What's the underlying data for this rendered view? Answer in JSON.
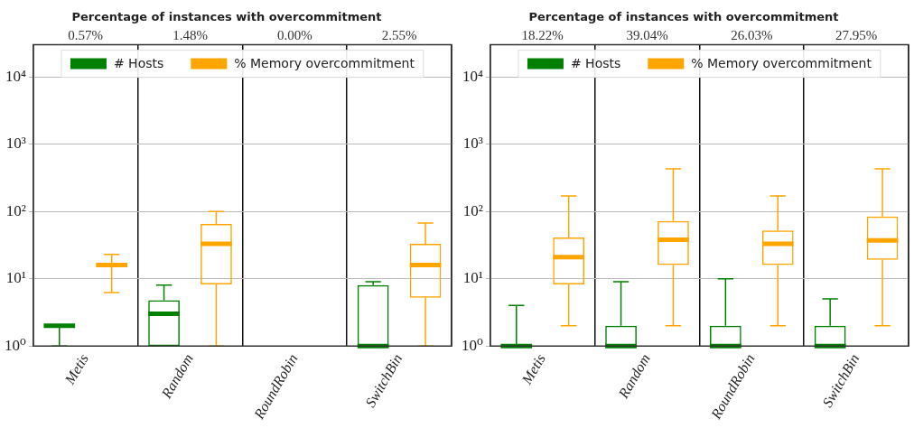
{
  "chart_data": [
    {
      "type": "box",
      "title": "Percentage of instances with overcommitment",
      "categories": [
        "Metis",
        "Random",
        "RoundRobin",
        "SwitchBin"
      ],
      "log": "y",
      "ylim": [
        1,
        30000
      ],
      "yticks": [
        {
          "value": 1,
          "label": "10⁰"
        },
        {
          "value": 10,
          "label": "10¹"
        },
        {
          "value": 100,
          "label": "10²"
        },
        {
          "value": 1000,
          "label": "10³"
        },
        {
          "value": 10000,
          "label": "10⁴"
        }
      ],
      "grid": true,
      "legend": "top",
      "annotations": [
        "0.57%",
        "1.48%",
        "0.00%",
        "2.55%"
      ],
      "series": [
        {
          "name": "# Hosts",
          "color": "#008000",
          "boxes": [
            {
              "low": 1,
              "q1": 2,
              "median": 2,
              "q3": 2,
              "high": 2
            },
            {
              "low": 1,
              "q1": 1,
              "median": 3,
              "q3": 4.8,
              "high": 8
            },
            null,
            {
              "low": 1,
              "q1": 1,
              "median": 1,
              "q3": 8,
              "high": 9
            }
          ]
        },
        {
          "name": "% Memory overcommitment",
          "color": "#ffa500",
          "boxes": [
            {
              "low": 6.2,
              "q1": 16,
              "median": 16,
              "q3": 16,
              "high": 23
            },
            {
              "low": 1,
              "q1": 8.2,
              "median": 33,
              "q3": 65,
              "high": 100
            },
            null,
            {
              "low": 1,
              "q1": 5.2,
              "median": 16,
              "q3": 33,
              "high": 67
            }
          ]
        }
      ]
    },
    {
      "type": "box",
      "title": "Percentage of instances with overcommitment",
      "categories": [
        "Metis",
        "Random",
        "RoundRobin",
        "SwitchBin"
      ],
      "log": "y",
      "ylim": [
        1,
        30000
      ],
      "yticks": [
        {
          "value": 1,
          "label": "10⁰"
        },
        {
          "value": 10,
          "label": "10¹"
        },
        {
          "value": 100,
          "label": "10²"
        },
        {
          "value": 1000,
          "label": "10³"
        },
        {
          "value": 10000,
          "label": "10⁴"
        }
      ],
      "grid": true,
      "legend": "top",
      "annotations": [
        "18.22%",
        "39.04%",
        "26.03%",
        "27.95%"
      ],
      "series": [
        {
          "name": "# Hosts",
          "color": "#008000",
          "boxes": [
            {
              "low": 1,
              "q1": 1,
              "median": 1,
              "q3": 1,
              "high": 4
            },
            {
              "low": 1,
              "q1": 1,
              "median": 1,
              "q3": 2,
              "high": 9
            },
            {
              "low": 1,
              "q1": 1,
              "median": 1,
              "q3": 2,
              "high": 10
            },
            {
              "low": 1,
              "q1": 1,
              "median": 1,
              "q3": 2,
              "high": 5
            }
          ]
        },
        {
          "name": "% Memory overcommitment",
          "color": "#ffa500",
          "boxes": [
            {
              "low": 2,
              "q1": 8.2,
              "median": 21,
              "q3": 41,
              "high": 170
            },
            {
              "low": 2,
              "q1": 16,
              "median": 38,
              "q3": 72,
              "high": 430
            },
            {
              "low": 2,
              "q1": 16,
              "median": 33,
              "q3": 52,
              "high": 170
            },
            {
              "low": 2,
              "q1": 19,
              "median": 37,
              "q3": 84,
              "high": 430
            }
          ]
        }
      ]
    }
  ]
}
